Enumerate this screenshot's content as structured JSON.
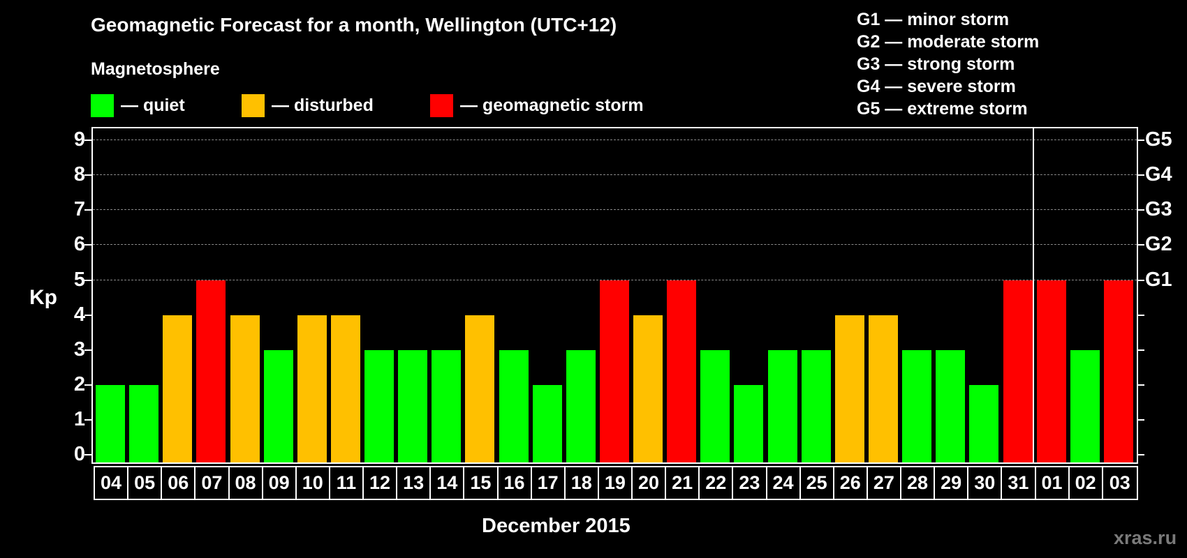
{
  "header": {
    "title": "Geomagnetic Forecast for a month, Wellington (UTC+12)",
    "subtitle": "Magnetosphere"
  },
  "legend": {
    "items": [
      {
        "label": "— quiet",
        "color": "#00ff00"
      },
      {
        "label": "— disturbed",
        "color": "#ffc000"
      },
      {
        "label": "— geomagnetic storm",
        "color": "#ff0000"
      }
    ]
  },
  "storm_legend": {
    "items": [
      "G1 — minor storm",
      "G2 — moderate storm",
      "G3 — strong storm",
      "G4 — severe storm",
      "G5 — extreme storm"
    ]
  },
  "axes": {
    "ylabel": "Kp",
    "xlabel": "December 2015",
    "yticks": [
      "0",
      "1",
      "2",
      "3",
      "4",
      "5",
      "6",
      "7",
      "8",
      "9"
    ],
    "right_labels": [
      {
        "value": 5,
        "label": "G1"
      },
      {
        "value": 6,
        "label": "G2"
      },
      {
        "value": 7,
        "label": "G3"
      },
      {
        "value": 8,
        "label": "G4"
      },
      {
        "value": 9,
        "label": "G5"
      }
    ]
  },
  "watermark": "xras.ru",
  "colors": {
    "quiet": "#00ff00",
    "disturbed": "#ffc000",
    "storm": "#ff0000",
    "background": "#000000",
    "grid": "#8a8a8a"
  },
  "chart_data": {
    "type": "bar",
    "title": "Geomagnetic Forecast for a month, Wellington (UTC+12)",
    "subtitle": "Magnetosphere",
    "xlabel": "December 2015",
    "ylabel": "Kp",
    "ylim": [
      0,
      9
    ],
    "grid": true,
    "legend_position": "top",
    "categories": [
      "04",
      "05",
      "06",
      "07",
      "08",
      "09",
      "10",
      "11",
      "12",
      "13",
      "14",
      "15",
      "16",
      "17",
      "18",
      "19",
      "20",
      "21",
      "22",
      "23",
      "24",
      "25",
      "26",
      "27",
      "28",
      "29",
      "30",
      "31",
      "01",
      "02",
      "03"
    ],
    "values": [
      2,
      2,
      4,
      5,
      4,
      3,
      4,
      4,
      3,
      3,
      3,
      4,
      3,
      2,
      3,
      5,
      4,
      5,
      3,
      2,
      3,
      3,
      4,
      4,
      3,
      3,
      2,
      5,
      5,
      3,
      5
    ],
    "status": [
      "quiet",
      "quiet",
      "disturbed",
      "storm",
      "disturbed",
      "quiet",
      "disturbed",
      "disturbed",
      "quiet",
      "quiet",
      "quiet",
      "disturbed",
      "quiet",
      "quiet",
      "quiet",
      "storm",
      "disturbed",
      "storm",
      "quiet",
      "quiet",
      "quiet",
      "quiet",
      "disturbed",
      "disturbed",
      "quiet",
      "quiet",
      "quiet",
      "storm",
      "storm",
      "quiet",
      "storm"
    ],
    "legend": [
      "quiet",
      "disturbed",
      "geomagnetic storm"
    ],
    "right_axis_labels": {
      "5": "G1",
      "6": "G2",
      "7": "G3",
      "8": "G4",
      "9": "G5"
    },
    "annotations": [
      "Month boundary between 31 and 01"
    ]
  }
}
